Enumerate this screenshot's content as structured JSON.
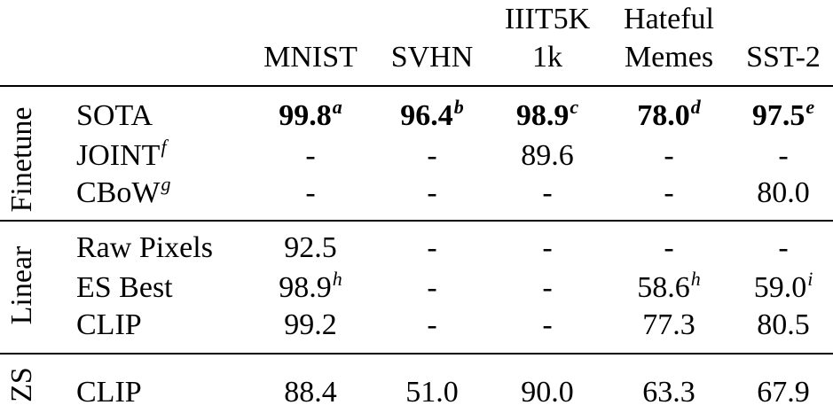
{
  "headers": {
    "mnist": "MNIST",
    "svhn": "SVHN",
    "iiit5k_line1": "IIIT5K",
    "iiit5k_line2": "1k",
    "hateful_line1": "Hateful",
    "hateful_line2": "Memes",
    "sst2": "SST-2"
  },
  "groups": {
    "finetune": "Finetune",
    "linear": "Linear",
    "zs": "ZS"
  },
  "rows": {
    "sota": {
      "label": "SOTA",
      "mnist": "99.8",
      "mnist_sup": "a",
      "svhn": "96.4",
      "svhn_sup": "b",
      "iiit": "98.9",
      "iiit_sup": "c",
      "hateful": "78.0",
      "hateful_sup": "d",
      "sst2": "97.5",
      "sst2_sup": "e"
    },
    "joint": {
      "label": "JOINT",
      "label_sup": "f",
      "mnist": "-",
      "svhn": "-",
      "iiit": "89.6",
      "hateful": "-",
      "sst2": "-"
    },
    "cbow": {
      "label": "CBoW",
      "label_sup": "g",
      "mnist": "-",
      "svhn": "-",
      "iiit": "-",
      "hateful": "-",
      "sst2": "80.0"
    },
    "raw": {
      "label": "Raw Pixels",
      "mnist": "92.5",
      "svhn": "-",
      "iiit": "-",
      "hateful": "-",
      "sst2": "-"
    },
    "es": {
      "label": "ES Best",
      "mnist": "98.9",
      "mnist_sup": "h",
      "svhn": "-",
      "iiit": "-",
      "hateful": "58.6",
      "hateful_sup": "h",
      "sst2": "59.0",
      "sst2_sup": "i"
    },
    "clip_linear": {
      "label": "CLIP",
      "mnist": "99.2",
      "svhn": "-",
      "iiit": "-",
      "hateful": "77.3",
      "sst2": "80.5"
    },
    "clip_zs": {
      "label": "CLIP",
      "mnist": "88.4",
      "svhn": "51.0",
      "iiit": "90.0",
      "hateful": "63.3",
      "sst2": "67.9"
    }
  }
}
